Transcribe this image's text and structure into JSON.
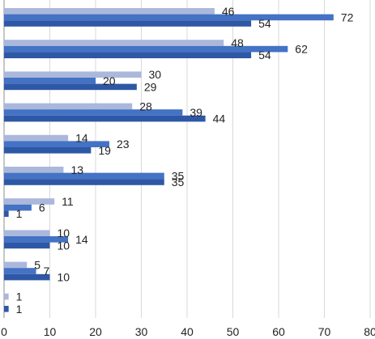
{
  "chart_data": {
    "type": "bar",
    "orientation": "horizontal",
    "title": "",
    "xlabel": "",
    "ylabel": "",
    "xlim": [
      0,
      80
    ],
    "x_ticks": [
      "0",
      "10",
      "20",
      "30",
      "40",
      "50",
      "60",
      "70",
      "80"
    ],
    "grid": "vertical",
    "legend": "none",
    "series": [
      {
        "color": "#aab8dc",
        "values": [
          46,
          48,
          30,
          28,
          14,
          13,
          11,
          10,
          5,
          1
        ]
      },
      {
        "color": "#4472c4",
        "values": [
          72,
          62,
          20,
          39,
          23,
          35,
          6,
          14,
          7,
          null
        ]
      },
      {
        "color": "#2e58a5",
        "values": [
          54,
          54,
          29,
          44,
          19,
          35,
          1,
          10,
          10,
          1
        ]
      }
    ]
  }
}
